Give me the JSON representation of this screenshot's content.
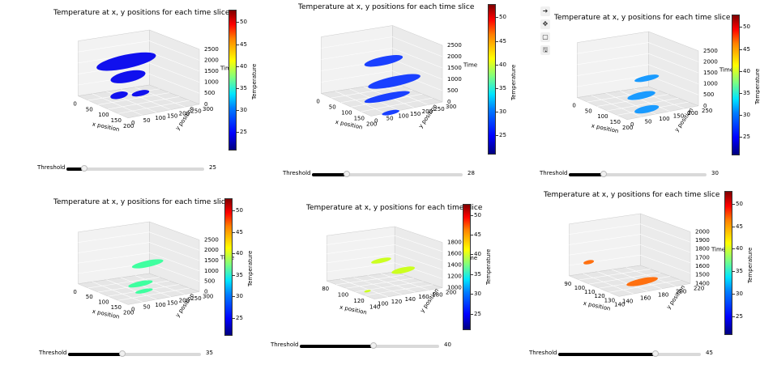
{
  "toolbar": {
    "buttons": [
      {
        "icon": "arrow-right-icon",
        "glyph": "➜"
      },
      {
        "icon": "move-icon",
        "glyph": "✥"
      },
      {
        "icon": "square-icon",
        "glyph": "▢"
      },
      {
        "icon": "save-icon",
        "glyph": "🖫"
      }
    ]
  },
  "panels": [
    {
      "title": "Temperature at x, y positions for each time slice",
      "x_label": "x position",
      "y_label": "y position",
      "z_label": "Time",
      "x_ticks": [
        "0",
        "50",
        "100",
        "150",
        "200"
      ],
      "y_ticks": [
        "0",
        "50",
        "100",
        "150",
        "200",
        "250",
        "300"
      ],
      "z_ticks": [
        "0",
        "500",
        "1000",
        "1500",
        "2000",
        "2500"
      ],
      "colorbar": {
        "label": "Temperature",
        "ticks": [
          "25",
          "30",
          "35",
          "40",
          "45",
          "50"
        ]
      },
      "slider": {
        "label": "Threshold",
        "value": "25",
        "fraction": 0.13
      },
      "color": "#1010ee"
    },
    {
      "title": "Temperature at x, y positions for each time slice",
      "x_label": "x position",
      "y_label": "y position",
      "z_label": "Time",
      "x_ticks": [
        "0",
        "50",
        "100",
        "150",
        "200"
      ],
      "y_ticks": [
        "0",
        "50",
        "100",
        "150",
        "200",
        "250",
        "300"
      ],
      "z_ticks": [
        "0",
        "500",
        "1000",
        "1500",
        "2000",
        "2500"
      ],
      "colorbar": {
        "label": "Temperature",
        "ticks": [
          "25",
          "30",
          "35",
          "40",
          "45",
          "50"
        ]
      },
      "slider": {
        "label": "Threshold",
        "value": "28",
        "fraction": 0.23
      },
      "color": "#1a40ff"
    },
    {
      "title": "Temperature at x, y positions for each time slice",
      "x_label": "x position",
      "y_label": "y position",
      "z_label": "Time",
      "x_ticks": [
        "0",
        "50",
        "100",
        "150",
        "200"
      ],
      "y_ticks": [
        "0",
        "50",
        "100",
        "150",
        "200",
        "250"
      ],
      "z_ticks": [
        "0",
        "500",
        "1000",
        "1500",
        "2000",
        "2500"
      ],
      "colorbar": {
        "label": "Temperature",
        "ticks": [
          "25",
          "30",
          "35",
          "40",
          "45",
          "50"
        ]
      },
      "slider": {
        "label": "Threshold",
        "value": "30",
        "fraction": 0.25
      },
      "color": "#1a9bff"
    },
    {
      "title": "Temperature at x, y positions for each time slice",
      "x_label": "x position",
      "y_label": "y position",
      "z_label": "Time",
      "x_ticks": [
        "0",
        "50",
        "100",
        "150",
        "200"
      ],
      "y_ticks": [
        "0",
        "50",
        "100",
        "150",
        "200",
        "250",
        "300"
      ],
      "z_ticks": [
        "0",
        "500",
        "1000",
        "1500",
        "2000",
        "2500"
      ],
      "colorbar": {
        "label": "Temperature",
        "ticks": [
          "25",
          "30",
          "35",
          "40",
          "45",
          "50"
        ]
      },
      "slider": {
        "label": "Threshold",
        "value": "35",
        "fraction": 0.41
      },
      "color": "#3fffa0"
    },
    {
      "title": "Temperature at x, y positions for each time slice",
      "x_label": "x position",
      "y_label": "y position",
      "z_label": "Time",
      "x_ticks": [
        "80",
        "100",
        "120",
        "140"
      ],
      "y_ticks": [
        "100",
        "120",
        "140",
        "160",
        "180",
        "200"
      ],
      "z_ticks": [
        "1000",
        "1200",
        "1400",
        "1600",
        "1800"
      ],
      "colorbar": {
        "label": "Temperature",
        "ticks": [
          "25",
          "30",
          "35",
          "40",
          "45",
          "50"
        ]
      },
      "slider": {
        "label": "Threshold",
        "value": "40",
        "fraction": 0.53
      },
      "color": "#ccff20"
    },
    {
      "title": "Temperature at x, y positions for each time slice",
      "x_label": "x position",
      "y_label": "y position",
      "z_label": "Time",
      "x_ticks": [
        "90",
        "100",
        "110",
        "120",
        "130",
        "140"
      ],
      "y_ticks": [
        "140",
        "160",
        "180",
        "200",
        "220"
      ],
      "z_ticks": [
        "1400",
        "1500",
        "1600",
        "1700",
        "1800",
        "1900",
        "2000"
      ],
      "colorbar": {
        "label": "Temperature",
        "ticks": [
          "25",
          "30",
          "35",
          "40",
          "45",
          "50"
        ]
      },
      "slider": {
        "label": "Threshold",
        "value": "45",
        "fraction": 0.68
      },
      "color": "#ff7010"
    }
  ]
}
